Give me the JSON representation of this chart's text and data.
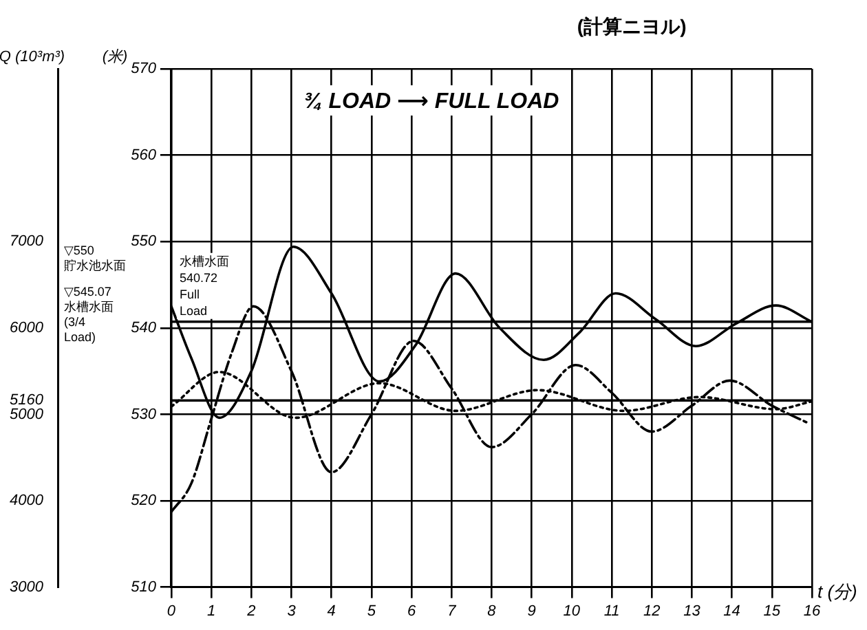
{
  "chart_data": {
    "type": "line",
    "title": "¾ LOAD ⟶ FULL LOAD",
    "subtitle": "(計算ニヨル)",
    "xlabel": "t (分)",
    "ylabel": "(米)",
    "y2label": "Q (10³m³)",
    "xlim": [
      0,
      16
    ],
    "xticks": [
      0,
      1,
      2,
      3,
      4,
      5,
      6,
      7,
      8,
      9,
      10,
      11,
      12,
      13,
      14,
      15,
      16
    ],
    "ylim": [
      510,
      570
    ],
    "yticks": [
      510,
      520,
      530,
      540,
      550,
      560,
      570
    ],
    "y2lim": [
      3000,
      9000
    ],
    "y2ticks": [
      3000,
      4000,
      5000,
      5160,
      6000,
      7000
    ],
    "grid": true,
    "legend": false,
    "marker": "none",
    "series": [
      {
        "color": "#000000",
        "line_style": "solid",
        "x": [
          0,
          0.5,
          1.2,
          2,
          3.05,
          4,
          5.2,
          6.1,
          7.1,
          8.2,
          9.3,
          10.2,
          11.1,
          12.1,
          13.1,
          14.1,
          15.1,
          16
        ],
        "values": [
          542.5,
          536.5,
          529.6,
          535,
          549.4,
          544,
          533.8,
          538,
          546.3,
          540,
          536.3,
          539.5,
          544,
          541,
          537.9,
          540.5,
          542.6,
          540.7
        ]
      },
      {
        "color": "#000000",
        "line_style": "dashed",
        "x": [
          0,
          0.5,
          1,
          1.5,
          2.05,
          3,
          4,
          5,
          6.05,
          7,
          8,
          9,
          10.1,
          11,
          12,
          13,
          13.95,
          15,
          15.9
        ],
        "values": [
          518.7,
          522,
          529.5,
          537,
          542.5,
          535,
          523.3,
          530,
          538.5,
          533,
          526.2,
          530,
          535.7,
          532.5,
          528,
          531,
          533.9,
          531,
          529
        ]
      },
      {
        "color": "#000000",
        "line_style": "dotted",
        "x": [
          0,
          1.2,
          3.1,
          5.2,
          7.1,
          9.15,
          11.3,
          13.2,
          15.1,
          16
        ],
        "values": [
          530.9,
          534.9,
          529.6,
          533.6,
          530.4,
          532.8,
          530.4,
          532,
          530.6,
          531.5
        ]
      }
    ],
    "ref_lines": [
      {
        "axis": "y",
        "value": 540.72,
        "color": "#000000"
      },
      {
        "axis": "y2",
        "value": 5160,
        "color": "#000000"
      }
    ],
    "annotations": [
      "▽550 貯水池水面",
      "▽545.07 水槽水面 (3/4 Load)",
      {
        "text": "水槽水面 540.72 Full Load",
        "x": 0,
        "y": 540.72
      }
    ]
  }
}
